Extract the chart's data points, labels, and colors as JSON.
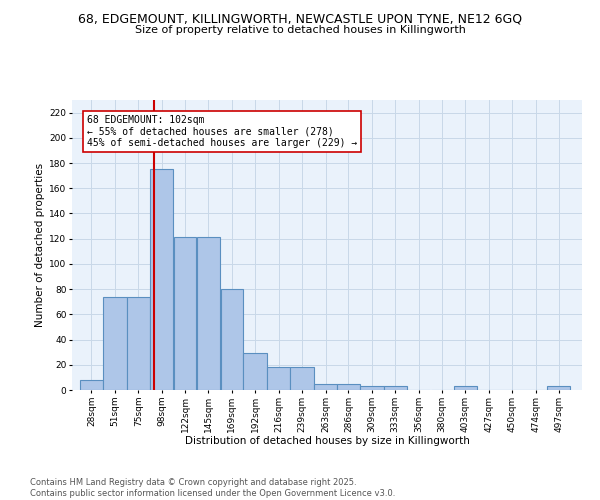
{
  "title_line1": "68, EDGEMOUNT, KILLINGWORTH, NEWCASTLE UPON TYNE, NE12 6GQ",
  "title_line2": "Size of property relative to detached houses in Killingworth",
  "xlabel": "Distribution of detached houses by size in Killingworth",
  "ylabel": "Number of detached properties",
  "bin_labels": [
    "28sqm",
    "51sqm",
    "75sqm",
    "98sqm",
    "122sqm",
    "145sqm",
    "169sqm",
    "192sqm",
    "216sqm",
    "239sqm",
    "263sqm",
    "286sqm",
    "309sqm",
    "333sqm",
    "356sqm",
    "380sqm",
    "403sqm",
    "427sqm",
    "450sqm",
    "474sqm",
    "497sqm"
  ],
  "bin_edges": [
    28,
    51,
    75,
    98,
    122,
    145,
    169,
    192,
    216,
    239,
    263,
    286,
    309,
    333,
    356,
    380,
    403,
    427,
    450,
    474,
    497,
    520
  ],
  "heights": [
    8,
    74,
    74,
    175,
    121,
    121,
    80,
    29,
    18,
    18,
    5,
    5,
    3,
    3,
    0,
    0,
    3,
    0,
    0,
    0,
    3
  ],
  "bar_color": "#aec6e8",
  "bar_edge_color": "#5a8fc0",
  "bar_edge_width": 0.8,
  "vline_x": 102,
  "vline_color": "#cc0000",
  "annotation_text": "68 EDGEMOUNT: 102sqm\n← 55% of detached houses are smaller (278)\n45% of semi-detached houses are larger (229) →",
  "annotation_box_color": "#ffffff",
  "annotation_box_edge": "#cc0000",
  "ylim": [
    0,
    230
  ],
  "yticks": [
    0,
    20,
    40,
    60,
    80,
    100,
    120,
    140,
    160,
    180,
    200,
    220
  ],
  "grid_color": "#c8d8e8",
  "background_color": "#eaf2fb",
  "footer_text": "Contains HM Land Registry data © Crown copyright and database right 2025.\nContains public sector information licensed under the Open Government Licence v3.0.",
  "title_fontsize": 9,
  "subtitle_fontsize": 8,
  "axis_label_fontsize": 7.5,
  "tick_fontsize": 6.5,
  "annotation_fontsize": 7,
  "footer_fontsize": 6
}
